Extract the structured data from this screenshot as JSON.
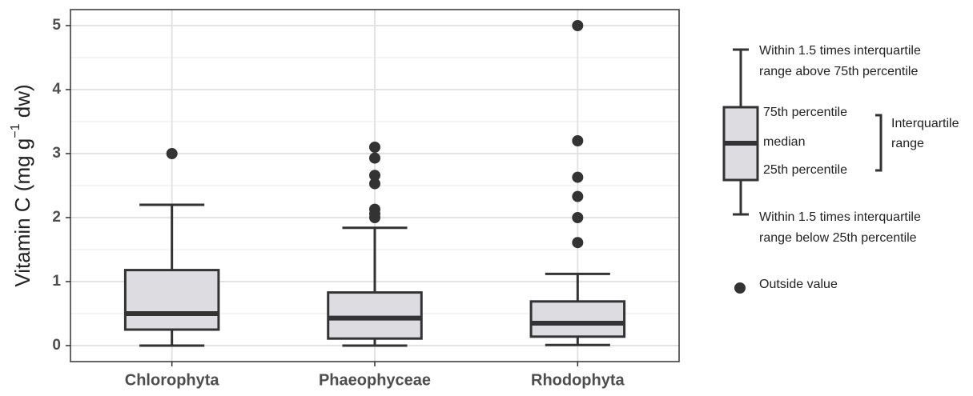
{
  "chart_data": {
    "type": "box",
    "y_label": {
      "text": "Vitamin C (mg g",
      "superscript": "−1",
      "suffix": " dw)"
    },
    "categories": [
      "Chlorophyta",
      "Phaeophyceae",
      "Rhodophyta"
    ],
    "boxes": [
      {
        "whisker_low": 0,
        "q1": 0.25,
        "median": 0.5,
        "q3": 1.18,
        "whisker_high": 2.2,
        "outliers": [
          3.0
        ]
      },
      {
        "whisker_low": 0,
        "q1": 0.11,
        "median": 0.43,
        "q3": 0.83,
        "whisker_high": 1.84,
        "outliers": [
          3.1,
          2.93,
          2.66,
          2.53,
          2.13,
          2.06,
          2.0
        ]
      },
      {
        "whisker_low": 0.01,
        "q1": 0.14,
        "median": 0.35,
        "q3": 0.69,
        "whisker_high": 1.12,
        "outliers": [
          5.0,
          3.2,
          2.63,
          2.33,
          2.0,
          1.61
        ]
      }
    ],
    "color": "#dcdce1",
    "ylim": [
      -0.25,
      5.25
    ],
    "yticks": [
      0,
      1,
      2,
      3,
      4,
      5
    ],
    "minor_yticks": [
      0.5,
      1.5,
      2.5,
      3.5,
      4.5
    ],
    "grid": true,
    "key": {
      "upper_whisker": [
        "Within 1.5 times interquartile",
        "range above 75th percentile"
      ],
      "q3": "75th percentile",
      "median": "median",
      "q1": "25th percentile",
      "iqr": [
        "Interquartile",
        "range"
      ],
      "lower_whisker": [
        "Within 1.5 times interquartile",
        "range below 25th percentile"
      ],
      "outlier": "Outside value"
    }
  }
}
